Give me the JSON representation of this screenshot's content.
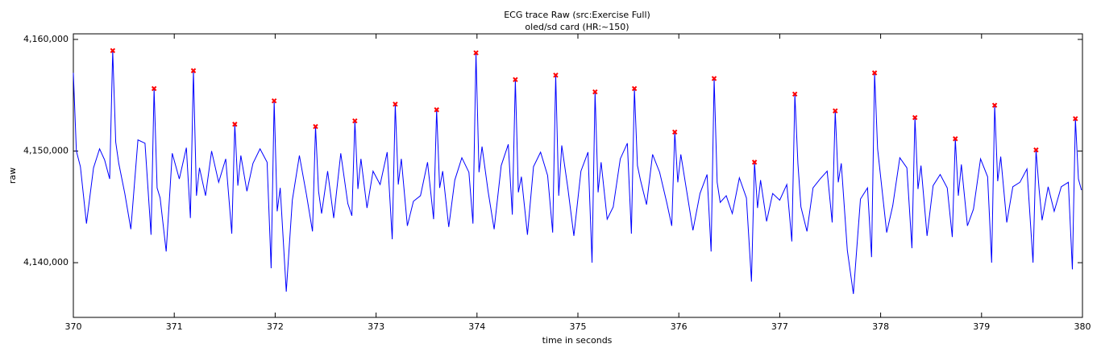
{
  "chart_data": {
    "type": "line",
    "title": "ECG trace Raw (src:Exercise Full)",
    "subtitle": "oled/sd card (HR:~150)",
    "x_label": "time in seconds",
    "y_label": "raw",
    "xlim": [
      370,
      380
    ],
    "ylim": [
      4135100,
      4160500
    ],
    "xticks": [
      370,
      371,
      372,
      373,
      374,
      375,
      376,
      377,
      378,
      379,
      380
    ],
    "yticks": [
      {
        "value": 4140000,
        "label": "4,140,000"
      },
      {
        "value": 4150000,
        "label": "4,150,000"
      },
      {
        "value": 4160000,
        "label": "4,160,000"
      }
    ],
    "grid": false,
    "series": [
      {
        "color": "#0000ff",
        "mode": "line",
        "x": [
          370.0,
          370.03,
          370.07,
          370.13,
          370.2,
          370.26,
          370.31,
          370.36,
          370.39,
          370.42,
          370.45,
          370.51,
          370.57,
          370.64,
          370.71,
          370.77,
          370.8,
          370.83,
          370.86,
          370.92,
          370.98,
          371.05,
          371.12,
          371.16,
          371.19,
          371.22,
          371.25,
          371.31,
          371.37,
          371.44,
          371.51,
          371.57,
          371.6,
          371.63,
          371.66,
          371.72,
          371.78,
          371.85,
          371.92,
          371.96,
          371.99,
          372.02,
          372.05,
          372.11,
          372.17,
          372.24,
          372.31,
          372.37,
          372.4,
          372.43,
          372.46,
          372.52,
          372.58,
          372.65,
          372.72,
          372.76,
          372.79,
          372.82,
          372.85,
          372.91,
          372.97,
          373.04,
          373.11,
          373.16,
          373.19,
          373.22,
          373.25,
          373.31,
          373.37,
          373.44,
          373.51,
          373.57,
          373.6,
          373.63,
          373.66,
          373.72,
          373.78,
          373.85,
          373.92,
          373.96,
          373.99,
          374.02,
          374.05,
          374.11,
          374.17,
          374.24,
          374.31,
          374.35,
          374.38,
          374.41,
          374.44,
          374.5,
          374.56,
          374.63,
          374.7,
          374.75,
          374.78,
          374.81,
          374.84,
          374.9,
          374.96,
          375.03,
          375.1,
          375.14,
          375.17,
          375.2,
          375.23,
          375.29,
          375.35,
          375.42,
          375.49,
          375.53,
          375.56,
          375.59,
          375.62,
          375.68,
          375.74,
          375.81,
          375.88,
          375.93,
          375.96,
          375.99,
          376.02,
          376.08,
          376.14,
          376.21,
          376.28,
          376.32,
          376.35,
          376.38,
          376.41,
          376.47,
          376.53,
          376.6,
          376.67,
          376.72,
          376.75,
          376.78,
          376.81,
          376.87,
          376.93,
          377.0,
          377.07,
          377.12,
          377.15,
          377.18,
          377.21,
          377.27,
          377.33,
          377.4,
          377.47,
          377.52,
          377.55,
          377.58,
          377.61,
          377.67,
          377.73,
          377.8,
          377.87,
          377.91,
          377.94,
          377.97,
          378.0,
          378.06,
          378.12,
          378.19,
          378.26,
          378.31,
          378.34,
          378.37,
          378.4,
          378.46,
          378.52,
          378.59,
          378.66,
          378.71,
          378.74,
          378.77,
          378.8,
          378.86,
          378.92,
          378.99,
          379.06,
          379.1,
          379.13,
          379.16,
          379.19,
          379.25,
          379.31,
          379.38,
          379.45,
          379.51,
          379.54,
          379.57,
          379.6,
          379.66,
          379.72,
          379.79,
          379.86,
          379.9,
          379.93,
          379.96,
          379.99
        ],
        "values": [
          4157000,
          4150000,
          4148600,
          4143500,
          4148500,
          4150200,
          4149200,
          4147500,
          4159000,
          4150800,
          4148900,
          4146200,
          4143000,
          4151000,
          4150700,
          4142500,
          4155600,
          4146700,
          4145800,
          4141000,
          4149800,
          4147500,
          4150300,
          4144000,
          4157200,
          4146000,
          4148500,
          4146000,
          4150000,
          4147200,
          4149300,
          4142600,
          4152400,
          4146900,
          4149600,
          4146400,
          4148900,
          4150200,
          4149000,
          4139500,
          4154500,
          4144600,
          4146700,
          4137400,
          4145600,
          4149600,
          4146100,
          4142800,
          4152200,
          4146400,
          4144400,
          4148200,
          4144000,
          4149800,
          4145300,
          4144200,
          4152700,
          4146600,
          4149300,
          4144900,
          4148200,
          4147000,
          4149900,
          4142100,
          4154200,
          4147000,
          4149300,
          4143300,
          4145500,
          4146000,
          4149000,
          4143900,
          4153700,
          4146700,
          4148200,
          4143200,
          4147400,
          4149400,
          4148100,
          4143500,
          4158800,
          4148100,
          4150400,
          4146400,
          4143000,
          4148700,
          4150600,
          4144300,
          4156400,
          4146300,
          4147700,
          4142500,
          4148600,
          4149900,
          4147800,
          4142700,
          4156800,
          4146000,
          4150500,
          4146700,
          4142400,
          4148200,
          4149900,
          4140000,
          4155300,
          4146300,
          4149000,
          4143900,
          4145000,
          4149300,
          4150700,
          4142600,
          4155600,
          4148700,
          4147400,
          4145200,
          4149700,
          4148100,
          4145400,
          4143300,
          4151700,
          4147200,
          4149700,
          4146300,
          4142900,
          4146200,
          4147900,
          4141000,
          4156500,
          4147200,
          4145400,
          4146000,
          4144400,
          4147600,
          4145800,
          4138300,
          4149000,
          4144900,
          4147400,
          4143700,
          4146200,
          4145600,
          4147000,
          4141900,
          4155100,
          4148900,
          4145000,
          4142800,
          4146700,
          4147500,
          4148200,
          4143600,
          4153600,
          4147200,
          4148900,
          4141100,
          4137200,
          4145700,
          4146700,
          4140500,
          4157000,
          4150200,
          4147700,
          4142700,
          4145100,
          4149400,
          4148500,
          4141300,
          4153000,
          4146600,
          4148700,
          4142400,
          4146900,
          4147900,
          4146700,
          4142300,
          4151100,
          4146000,
          4148800,
          4143300,
          4144800,
          4149300,
          4147700,
          4140000,
          4154100,
          4147300,
          4149500,
          4143600,
          4146800,
          4147200,
          4148400,
          4140000,
          4150100,
          4146600,
          4143800,
          4146800,
          4144600,
          4146800,
          4147200,
          4139400,
          4152900,
          4147500,
          4146500
        ]
      },
      {
        "color": "#ff0000",
        "mode": "markers",
        "x": [
          370.39,
          370.8,
          371.19,
          371.6,
          371.99,
          372.4,
          372.79,
          373.19,
          373.6,
          373.99,
          374.38,
          374.78,
          375.17,
          375.56,
          375.96,
          376.35,
          376.75,
          377.15,
          377.55,
          377.94,
          378.34,
          378.74,
          379.13,
          379.54,
          379.93
        ],
        "values": [
          4159000,
          4155600,
          4157200,
          4152400,
          4154500,
          4152200,
          4152700,
          4154200,
          4153700,
          4158800,
          4156400,
          4156800,
          4155300,
          4155600,
          4151700,
          4156500,
          4149000,
          4155100,
          4153600,
          4157000,
          4153000,
          4151100,
          4154100,
          4150100,
          4152900
        ]
      }
    ]
  }
}
